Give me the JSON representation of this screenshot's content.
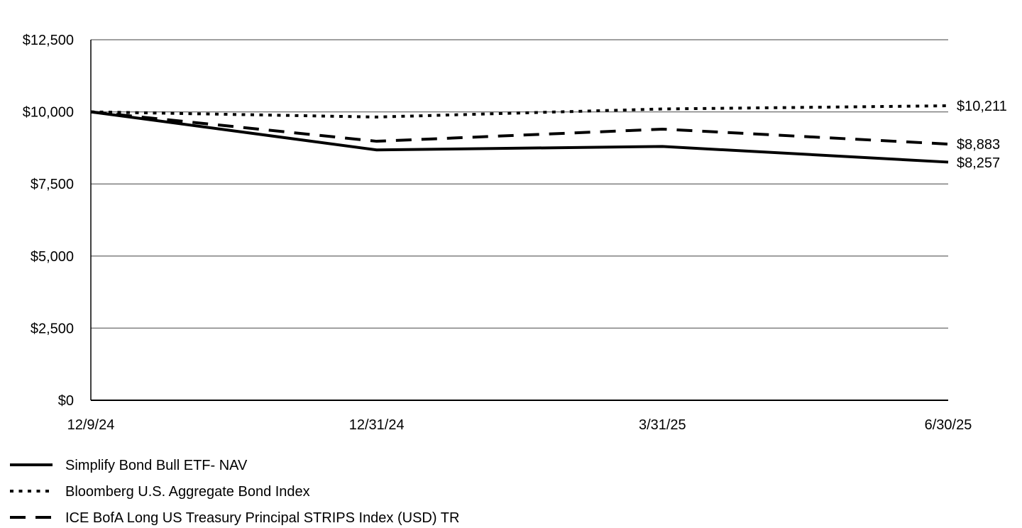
{
  "chart_data": {
    "type": "line",
    "title": "",
    "xlabel": "",
    "ylabel": "",
    "categories": [
      "12/9/24",
      "12/31/24",
      "3/31/25",
      "6/30/25"
    ],
    "ylim": [
      0,
      12500
    ],
    "yticks": [
      0,
      2500,
      5000,
      7500,
      10000,
      12500
    ],
    "ytick_labels": [
      "$0",
      "$2,500",
      "$5,000",
      "$7,500",
      "$10,000",
      "$12,500"
    ],
    "grid": true,
    "legend_position": "bottom-left",
    "series": [
      {
        "name": "Simplify Bond Bull ETF- NAV",
        "style": "solid",
        "values": [
          10000,
          8680,
          8800,
          8257
        ],
        "end_label": "$8,257"
      },
      {
        "name": "Bloomberg U.S. Aggregate Bond Index",
        "style": "dotted",
        "values": [
          10000,
          9820,
          10100,
          10211
        ],
        "end_label": "$10,211"
      },
      {
        "name": "ICE BofA Long US Treasury Principal STRIPS Index (USD) TR",
        "style": "dashed",
        "values": [
          10000,
          8980,
          9400,
          8883
        ],
        "end_label": "$8,883"
      }
    ],
    "colors": {
      "line": "#000000",
      "grid": "#808080",
      "axis": "#000000"
    }
  }
}
